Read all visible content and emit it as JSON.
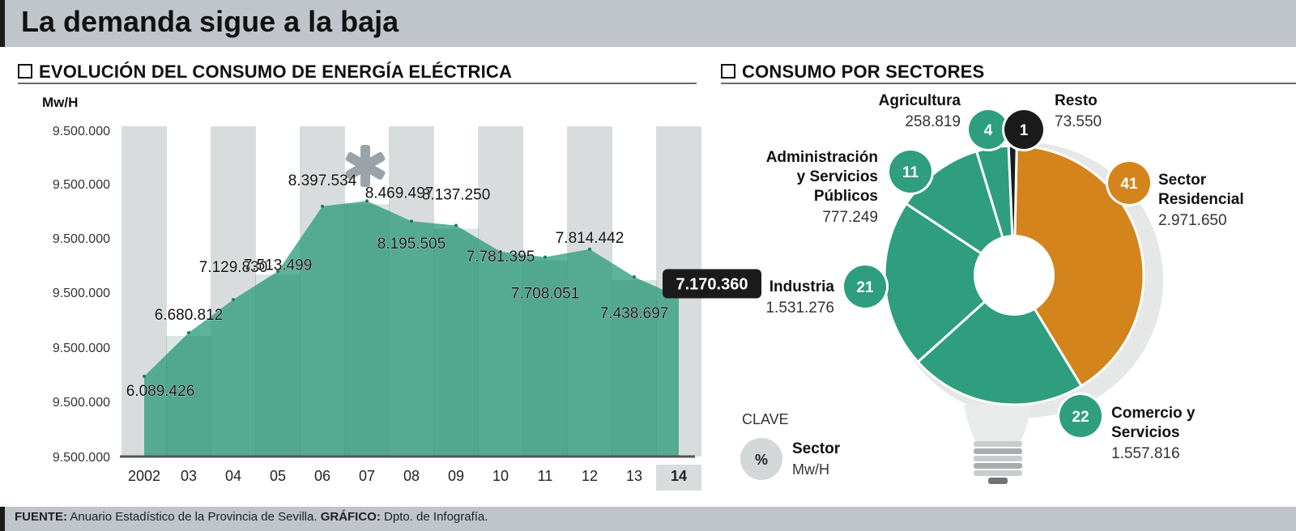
{
  "header": {
    "title": "La demanda sigue a la baja"
  },
  "left_section": {
    "title": "EVOLUCIÓN DEL CONSUMO DE ENERGÍA ELÉCTRICA"
  },
  "right_section": {
    "title": "CONSUMO POR SECTORES"
  },
  "footer": {
    "source_label": "FUENTE:",
    "source_text": "Anuario Estadístico de la Provincia de Sevilla.",
    "graphic_label": "GRÁFICO:",
    "graphic_text": "Dpto. de Infografía."
  },
  "chart_data": [
    {
      "type": "area",
      "ylabel": "Mw/H",
      "ytick_labels": [
        "9.500.000",
        "9.500.000",
        "9.500.000",
        "9.500.000",
        "9.500.000",
        "9.500.000",
        "9.500.000"
      ],
      "categories": [
        "2002",
        "03",
        "04",
        "05",
        "06",
        "07",
        "08",
        "09",
        "10",
        "11",
        "12",
        "13",
        "14"
      ],
      "values": [
        6089426,
        6680812,
        7129830,
        7513499,
        8397534,
        8469497,
        8195505,
        8137250,
        7781395,
        7708051,
        7814442,
        7438697,
        7170360
      ],
      "value_labels": [
        "6.089.426",
        "6.680.812",
        "7.129.830",
        "7.513.499",
        "8.397.534",
        "8.469.497",
        "8.195.505",
        "8.137.250",
        "7.781.395",
        "7.708.051",
        "7.814.442",
        "7.438.697",
        "7.170.360"
      ],
      "highlight_index": 12,
      "color": "#2e9e7e"
    },
    {
      "type": "pie",
      "title": "",
      "slices": [
        {
          "name": "Sector Residencial",
          "name_lines": [
            "Sector",
            "Residencial"
          ],
          "percent": 41,
          "value": 2971650,
          "value_label": "2.971.650",
          "color": "#d4841d"
        },
        {
          "name": "Comercio y Servicios",
          "name_lines": [
            "Comercio y",
            "Servicios"
          ],
          "percent": 22,
          "value": 1557816,
          "value_label": "1.557.816",
          "color": "#2e9e7e"
        },
        {
          "name": "Industria",
          "name_lines": [
            "Industria"
          ],
          "percent": 21,
          "value": 1531276,
          "value_label": "1.531.276",
          "color": "#2e9e7e"
        },
        {
          "name": "Administración y Servicios Públicos",
          "name_lines": [
            "Administración",
            "y Servicios",
            "Públicos"
          ],
          "percent": 11,
          "value": 777249,
          "value_label": "777.249",
          "color": "#2e9e7e"
        },
        {
          "name": "Agricultura",
          "name_lines": [
            "Agricultura"
          ],
          "percent": 4,
          "value": 258819,
          "value_label": "258.819",
          "color": "#2e9e7e"
        },
        {
          "name": "Resto",
          "name_lines": [
            "Resto"
          ],
          "percent": 1,
          "value": 73550,
          "value_label": "73.550",
          "color": "#1b1b1b"
        }
      ]
    }
  ],
  "key": {
    "title": "CLAVE",
    "symbol": "%",
    "line1": "Sector",
    "line2": "Mw/H"
  }
}
